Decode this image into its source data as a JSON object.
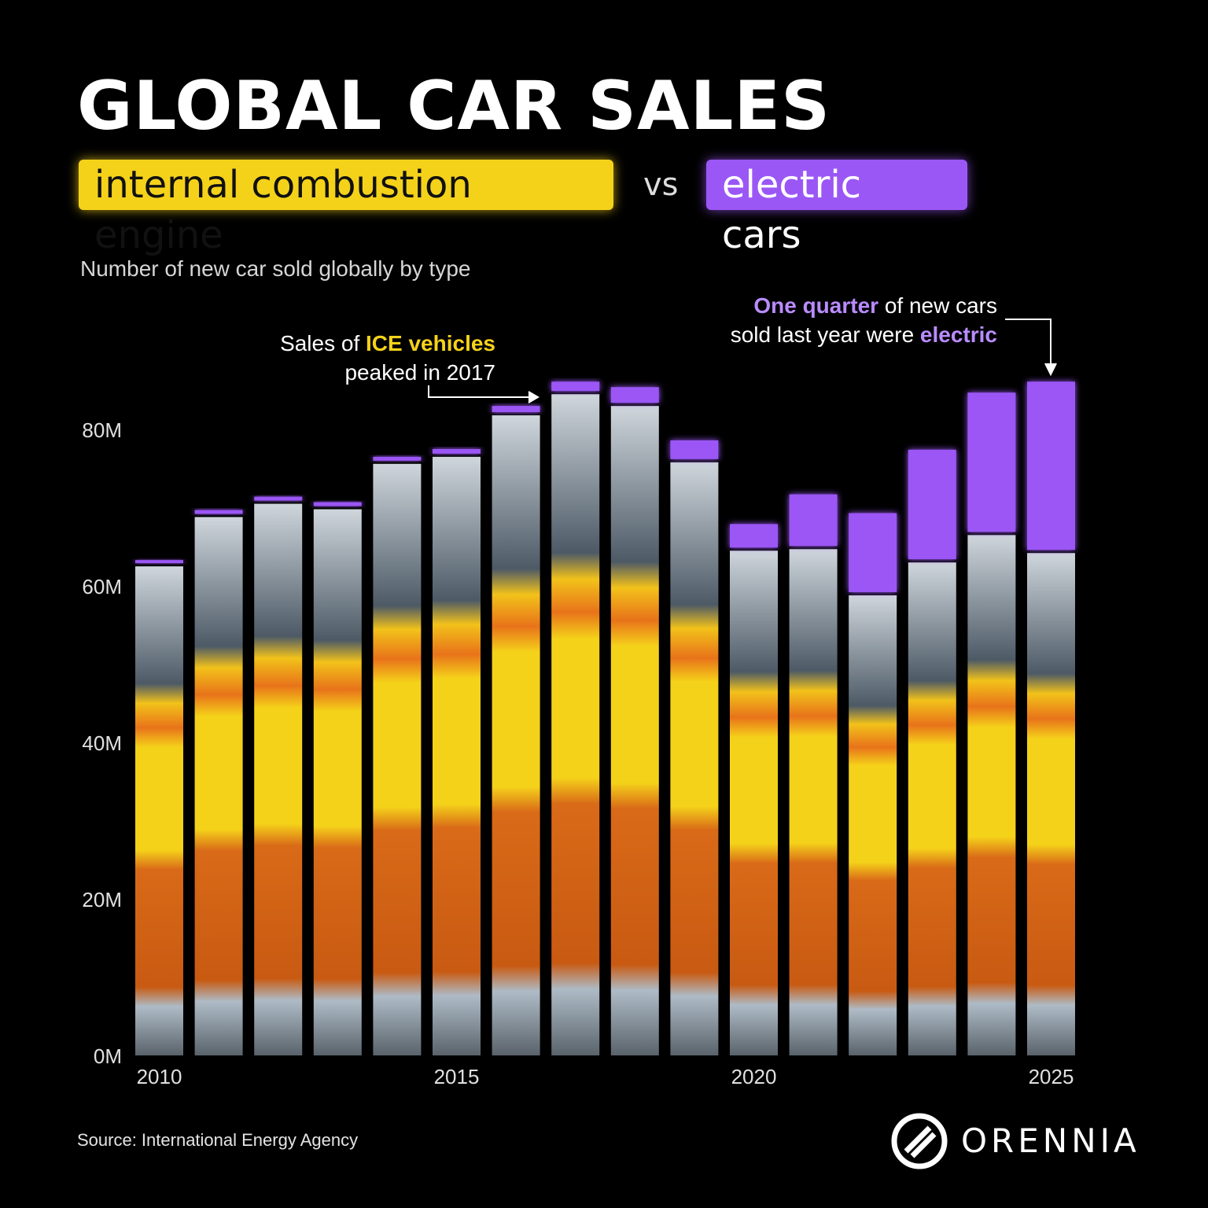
{
  "header": {
    "title": "GLOBAL CAR SALES",
    "tag_ice": "internal combustion engine",
    "vs": "vs",
    "tag_ev": "electric cars",
    "subtitle": "Number of new car sold globally by type"
  },
  "annotations": {
    "ice_pre": "Sales of ",
    "ice_highlight": "ICE vehicles",
    "ice_line2": "peaked in 2017",
    "ev_highlight1": "One quarter",
    "ev_mid": " of new cars",
    "ev_line2_pre": "sold last year were ",
    "ev_highlight2": "electric"
  },
  "footer": {
    "source": "Source: International Energy Agency",
    "logo": "ORENNIA"
  },
  "colors": {
    "ice": "#f5d21a",
    "ev": "#9b57f5",
    "background": "#000000"
  },
  "chart_data": {
    "type": "bar",
    "stacked": true,
    "x": [
      2010,
      2011,
      2012,
      2013,
      2014,
      2015,
      2016,
      2017,
      2018,
      2019,
      2020,
      2021,
      2022,
      2023,
      2024,
      2025
    ],
    "series": [
      {
        "name": "internal combustion engine",
        "values": [
          62.5,
          68.8,
          70.5,
          69.8,
          75.6,
          76.5,
          81.8,
          84.5,
          83.0,
          75.8,
          64.5,
          64.7,
          58.8,
          63.0,
          66.5,
          64.2
        ]
      },
      {
        "name": "electric cars",
        "values": [
          0.4,
          0.5,
          0.5,
          0.5,
          0.5,
          0.6,
          0.8,
          1.2,
          2.0,
          2.4,
          3.0,
          6.6,
          10.1,
          14.0,
          17.8,
          21.5
        ]
      }
    ],
    "x_ticks": [
      "2010",
      "2015",
      "2020",
      "2025"
    ],
    "y_ticks": [
      "0M",
      "20M",
      "40M",
      "60M",
      "80M"
    ],
    "ylim": [
      0,
      100
    ],
    "grid": false,
    "legend": "top"
  }
}
